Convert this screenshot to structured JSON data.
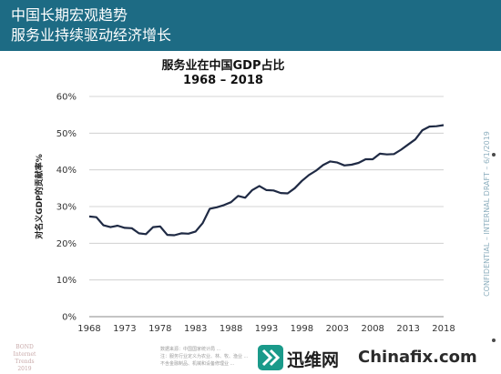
{
  "header": {
    "line1": "中国长期宏观趋势",
    "line2": "服务业持续驱动经济增长"
  },
  "side_note": "CONFIDENTIAL – INTERNAL DRAFT – 6/1/2019",
  "footer": {
    "badge": "BOND\nInternet Trends\n2019",
    "footnote": "数据来源：中国国家统计局 ...\n注：服务行业定义为农业、林、牧、渔业 ...\n不含金融制品、机械和设备修理业 ...",
    "watermark_cn": "迅维网",
    "watermark_en": "Chinafix.com"
  },
  "colors": {
    "header_bg": "#1d6b84",
    "line": "#1f2a44",
    "grid": "#c8c8c8",
    "watermark_icon": "#1a9a8a"
  },
  "chart_data": {
    "type": "line",
    "title": "服务业在中国GDP占比",
    "subtitle": "1968 – 2018",
    "xlabel": "",
    "ylabel": "对名义GDP的贡献率%",
    "xlim": [
      1968,
      2018
    ],
    "ylim": [
      0,
      60
    ],
    "x_ticks": [
      1968,
      1973,
      1978,
      1983,
      1988,
      1993,
      1998,
      2003,
      2008,
      2013,
      2018
    ],
    "y_ticks": [
      "0%",
      "10%",
      "20%",
      "30%",
      "40%",
      "50%",
      "60%"
    ],
    "y_tick_values": [
      0,
      10,
      20,
      30,
      40,
      50,
      60
    ],
    "grid": true,
    "series": [
      {
        "x": [
          1968,
          1969,
          1970,
          1971,
          1972,
          1973,
          1974,
          1975,
          1976,
          1977,
          1978,
          1979,
          1980,
          1981,
          1982,
          1983,
          1984,
          1985,
          1986,
          1987,
          1988,
          1989,
          1990,
          1991,
          1992,
          1993,
          1994,
          1995,
          1996,
          1997,
          1998,
          1999,
          2000,
          2001,
          2002,
          2003,
          2004,
          2005,
          2006,
          2007,
          2008,
          2009,
          2010,
          2011,
          2012,
          2013,
          2014,
          2015,
          2016,
          2017,
          2018
        ],
        "y": [
          27.3,
          27.1,
          24.9,
          24.4,
          24.8,
          24.2,
          24.1,
          22.7,
          22.5,
          24.4,
          24.6,
          22.3,
          22.2,
          22.7,
          22.6,
          23.2,
          25.5,
          29.4,
          29.8,
          30.4,
          31.2,
          32.9,
          32.4,
          34.5,
          35.6,
          34.5,
          34.4,
          33.7,
          33.6,
          35.0,
          37.0,
          38.6,
          39.8,
          41.3,
          42.3,
          42.0,
          41.2,
          41.4,
          41.9,
          42.9,
          42.9,
          44.4,
          44.2,
          44.3,
          45.5,
          46.9,
          48.3,
          50.8,
          51.8,
          51.9,
          52.2
        ]
      }
    ]
  }
}
